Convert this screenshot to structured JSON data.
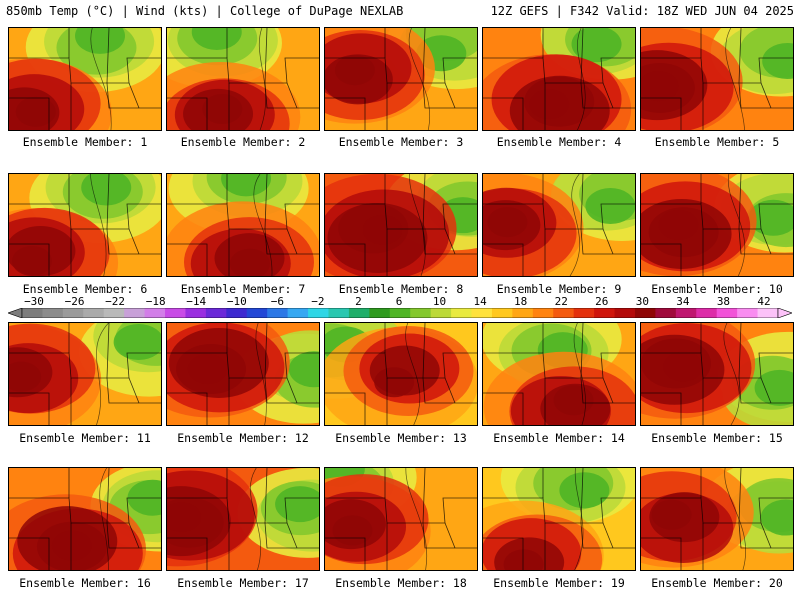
{
  "header": {
    "left_title": "850mb Temp (°C) | Wind (kts) | College of DuPage NEXLAB",
    "right_title": "12Z GEFS | F342 Valid: 18Z WED JUN 04 2025"
  },
  "members": [
    {
      "label": "Ensemble Member: 1",
      "warmth": 0.55,
      "hot_x": 0.15,
      "hot_y": 0.75,
      "cool_x": 0.6,
      "cool_y": 0.1
    },
    {
      "label": "Ensemble Member: 2",
      "warmth": 0.55,
      "hot_x": 0.35,
      "hot_y": 0.85,
      "cool_x": 0.35,
      "cool_y": 0.1
    },
    {
      "label": "Ensemble Member: 3",
      "warmth": 0.6,
      "hot_x": 0.2,
      "hot_y": 0.45,
      "cool_x": 0.8,
      "cool_y": 0.15
    },
    {
      "label": "Ensemble Member: 4",
      "warmth": 0.65,
      "hot_x": 0.45,
      "hot_y": 0.75,
      "cool_x": 0.8,
      "cool_y": 0.1
    },
    {
      "label": "Ensemble Member: 5",
      "warmth": 0.7,
      "hot_x": 0.15,
      "hot_y": 0.55,
      "cool_x": 0.9,
      "cool_y": 0.3
    },
    {
      "label": "Ensemble Member: 6",
      "warmth": 0.6,
      "hot_x": 0.2,
      "hot_y": 0.8,
      "cool_x": 0.6,
      "cool_y": 0.15
    },
    {
      "label": "Ensemble Member: 7",
      "warmth": 0.55,
      "hot_x": 0.5,
      "hot_y": 0.8,
      "cool_x": 0.5,
      "cool_y": 0.1
    },
    {
      "label": "Ensemble Member: 8",
      "warmth": 0.75,
      "hot_x": 0.35,
      "hot_y": 0.6,
      "cool_x": 0.9,
      "cool_y": 0.3
    },
    {
      "label": "Ensemble Member: 9",
      "warmth": 0.6,
      "hot_x": 0.15,
      "hot_y": 0.5,
      "cool_x": 0.85,
      "cool_y": 0.25
    },
    {
      "label": "Ensemble Member: 10",
      "warmth": 0.65,
      "hot_x": 0.25,
      "hot_y": 0.5,
      "cool_x": 0.9,
      "cool_y": 0.4
    },
    {
      "label": "Ensemble Member: 11",
      "warmth": 0.5,
      "hot_x": 0.1,
      "hot_y": 0.5,
      "cool_x": 0.9,
      "cool_y": 0.2
    },
    {
      "label": "Ensemble Member: 12",
      "warmth": 0.7,
      "hot_x": 0.3,
      "hot_y": 0.4,
      "cool_x": 0.9,
      "cool_y": 0.5
    },
    {
      "label": "Ensemble Member: 13",
      "warmth": 0.45,
      "hot_x": 0.5,
      "hot_y": 0.5,
      "cool_x": 0.1,
      "cool_y": 0.3
    },
    {
      "label": "Ensemble Member: 14",
      "warmth": 0.5,
      "hot_x": 0.55,
      "hot_y": 0.8,
      "cool_x": 0.5,
      "cool_y": 0.2
    },
    {
      "label": "Ensemble Member: 15",
      "warmth": 0.7,
      "hot_x": 0.25,
      "hot_y": 0.45,
      "cool_x": 0.9,
      "cool_y": 0.6
    },
    {
      "label": "Ensemble Member: 16",
      "warmth": 0.7,
      "hot_x": 0.4,
      "hot_y": 0.75,
      "cool_x": 0.95,
      "cool_y": 0.3
    },
    {
      "label": "Ensemble Member: 17",
      "warmth": 0.75,
      "hot_x": 0.1,
      "hot_y": 0.45,
      "cool_x": 0.9,
      "cool_y": 0.4
    },
    {
      "label": "Ensemble Member: 18",
      "warmth": 0.55,
      "hot_x": 0.2,
      "hot_y": 0.55,
      "cool_x": 0.15,
      "cool_y": 0.1
    },
    {
      "label": "Ensemble Member: 19",
      "warmth": 0.4,
      "hot_x": 0.3,
      "hot_y": 0.85,
      "cool_x": 0.6,
      "cool_y": 0.15
    },
    {
      "label": "Ensemble Member: 20",
      "warmth": 0.5,
      "hot_x": 0.25,
      "hot_y": 0.5,
      "cool_x": 0.9,
      "cool_y": 0.45
    }
  ],
  "colorbar": {
    "labels": [
      "−30",
      "−26",
      "−22",
      "−18",
      "−14",
      "−10",
      "−6",
      "−2",
      "2",
      "6",
      "10",
      "14",
      "18",
      "22",
      "26",
      "30",
      "34",
      "38",
      "42"
    ],
    "colors": [
      "#7d7d7d",
      "#8c8c8c",
      "#9b9b9b",
      "#aaaaaa",
      "#b9b9b9",
      "#c8a0d8",
      "#d27ee8",
      "#c84be6",
      "#9a2fe0",
      "#6b2ad8",
      "#3d2ad0",
      "#2348d6",
      "#2c78e6",
      "#36a8f2",
      "#2ed6e6",
      "#2ac7b0",
      "#1fae6a",
      "#2f9a1f",
      "#4fb526",
      "#84c82d",
      "#bcd938",
      "#e9ea3f",
      "#ffe23c",
      "#ffc81e",
      "#ffa614",
      "#ff8310",
      "#f45a0f",
      "#e4310d",
      "#cf150c",
      "#b30a0a",
      "#8f0606",
      "#a00a3c",
      "#bf1670",
      "#dd2ca8",
      "#f252d8",
      "#f98cf0",
      "#fcc2f8"
    ]
  },
  "temp_scale": [
    "#2f9a1f",
    "#4fb526",
    "#84c82d",
    "#bcd938",
    "#e9ea3f",
    "#ffe23c",
    "#ffc81e",
    "#ffa614",
    "#ff8310",
    "#f45a0f",
    "#e4310d",
    "#cf150c",
    "#b30a0a",
    "#8f0606"
  ]
}
